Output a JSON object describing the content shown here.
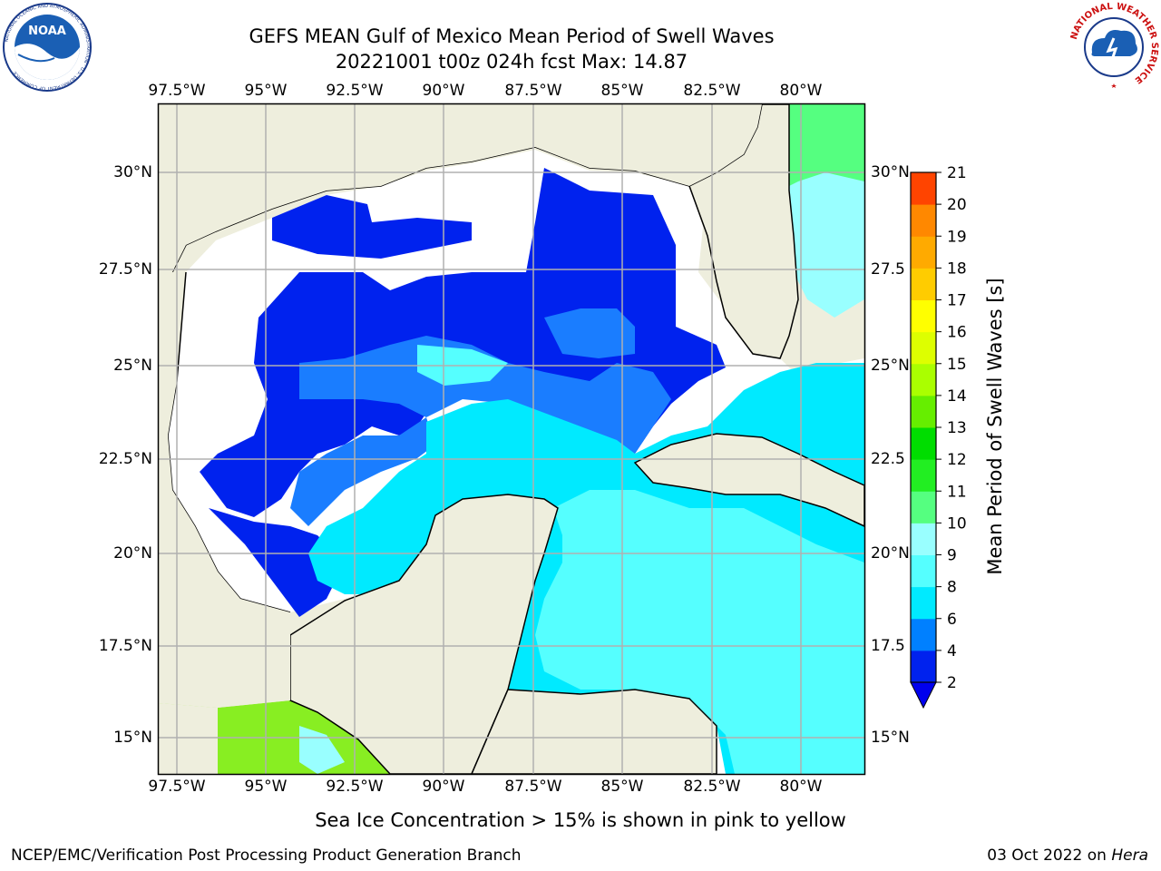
{
  "header": {
    "title_line1": "GEFS MEAN Gulf of Mexico Mean Period of Swell Waves",
    "title_line2": "20221001 t00z 024h fcst   Max: 14.87"
  },
  "logos": {
    "left": {
      "text": "NOAA",
      "ring_text": "NATIONAL OCEANIC AND ATMOSPHERIC ADMINISTRATION · U.S. DEPARTMENT OF COMMERCE"
    },
    "right": {
      "ring_text": "NATIONAL WEATHER SERVICE"
    }
  },
  "map": {
    "lon_labels": [
      "97.5°W",
      "95°W",
      "92.5°W",
      "90°W",
      "87.5°W",
      "85°W",
      "82.5°W",
      "80°W"
    ],
    "lat_labels_left": [
      "30°N",
      "27.5°N",
      "25°N",
      "22.5°N",
      "20°N",
      "17.5°N",
      "15°N"
    ],
    "lat_labels_right": [
      "30°N",
      "27.5",
      "25°N",
      "22.5",
      "20°N",
      "17.5",
      "15°N"
    ],
    "colors": {
      "land": "#eeeedd",
      "grid": "#b0b0b0",
      "no_data": "#ffffff"
    }
  },
  "colorbar": {
    "label": "Mean Period of Swell Waves [s]",
    "tick_labels": [
      "2",
      "4",
      "6",
      "8",
      "9",
      "10",
      "11",
      "12",
      "13",
      "14",
      "15",
      "16",
      "17",
      "18",
      "19",
      "20",
      "21"
    ],
    "colors": [
      "#0022ee",
      "#0080ff",
      "#00eaff",
      "#55ffff",
      "#99ffff",
      "#55ff80",
      "#22ee22",
      "#00dd00",
      "#66ee00",
      "#aaff00",
      "#ddff00",
      "#ffff00",
      "#ffcc00",
      "#ffaa00",
      "#ff8800",
      "#ff4400",
      "#ff1100"
    ],
    "under_color": "#0000ee"
  },
  "caption": "Sea Ice Concentration > 15% is shown in pink to yellow",
  "footer": {
    "left": "NCEP/EMC/Verification Post Processing Product Generation Branch",
    "right_date": "03 Oct 2022 on",
    "right_host": "Hera"
  }
}
